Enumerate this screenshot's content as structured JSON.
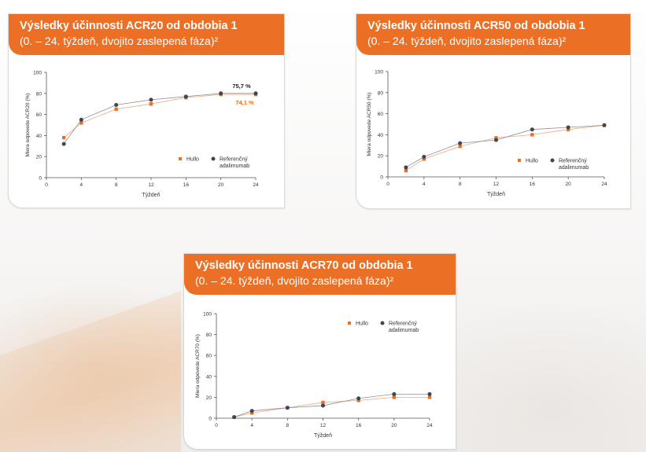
{
  "colors": {
    "hullo": "#ec6f26",
    "reference": "#3d4654",
    "header": "#ec6f26"
  },
  "chart_data": [
    {
      "type": "line",
      "title": "Výsledky účinnosti ACR20 od obdobia 1",
      "subtitle": "(0. – 24. týždeň, dvojito zaslepená fáza)²",
      "xlabel": "Týždeň",
      "ylabel": "Miera odpovede ACR20 (%)",
      "x_ticks": [
        "0",
        "4",
        "8",
        "12",
        "16",
        "20",
        "24"
      ],
      "y_ticks": [
        "0",
        "20",
        "40",
        "60",
        "80",
        "100"
      ],
      "xlim": [
        0,
        24
      ],
      "ylim": [
        0,
        100
      ],
      "legend": "right-middle",
      "x": [
        2,
        4,
        8,
        12,
        16,
        20,
        24
      ],
      "series": [
        {
          "name": "Hullo",
          "values": [
            38,
            52,
            65,
            70,
            76,
            79,
            79
          ]
        },
        {
          "name": "Referenčný adalimumab",
          "values": [
            32,
            55,
            69,
            74,
            77,
            80,
            80
          ]
        }
      ],
      "annotations": [
        "75,7 %",
        "74,1 %"
      ]
    },
    {
      "type": "line",
      "title": "Výsledky účinnosti ACR50 od obdobia 1",
      "subtitle": "(0. – 24. týždeň, dvojito zaslepená fáza)²",
      "xlabel": "Týždeň",
      "ylabel": "Miera odpovede ACR50 (%)",
      "x_ticks": [
        "0",
        "4",
        "8",
        "12",
        "16",
        "20",
        "24"
      ],
      "y_ticks": [
        "0",
        "20",
        "40",
        "60",
        "80",
        "100"
      ],
      "xlim": [
        0,
        24
      ],
      "ylim": [
        0,
        100
      ],
      "legend": "right-middle",
      "x": [
        2,
        4,
        8,
        12,
        16,
        20,
        24
      ],
      "series": [
        {
          "name": "Hullo",
          "values": [
            6,
            17,
            29,
            37,
            40,
            45,
            49
          ]
        },
        {
          "name": "Referenčný adalimumab",
          "values": [
            9,
            19,
            32,
            35,
            45,
            47,
            49
          ]
        }
      ],
      "annotations": []
    },
    {
      "type": "line",
      "title": "Výsledky účinnosti ACR70 od obdobia 1",
      "subtitle": "(0. – 24. týždeň, dvojito zaslepená fáza)²",
      "xlabel": "Týždeň",
      "ylabel": "Miera odpovede ACR70 (%)",
      "x_ticks": [
        "0",
        "4",
        "8",
        "12",
        "16",
        "20",
        "24"
      ],
      "y_ticks": [
        "0",
        "20",
        "40",
        "60",
        "80",
        "100"
      ],
      "xlim": [
        0,
        24
      ],
      "ylim": [
        0,
        100
      ],
      "legend": "top-right",
      "x": [
        2,
        4,
        8,
        12,
        16,
        20,
        24
      ],
      "series": [
        {
          "name": "Hullo",
          "values": [
            1,
            5,
            10,
            15,
            17,
            20,
            20
          ]
        },
        {
          "name": "Referenčný adalimumab",
          "values": [
            1,
            7,
            10,
            12,
            19,
            23,
            23
          ]
        }
      ],
      "annotations": []
    }
  ]
}
